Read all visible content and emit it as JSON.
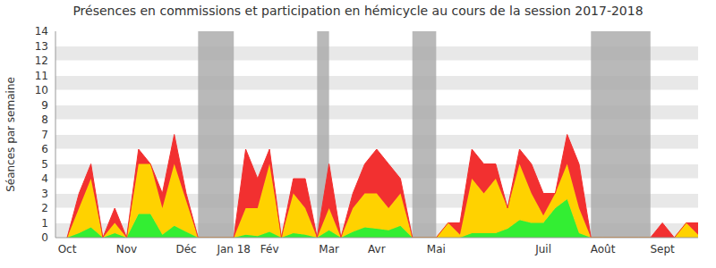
{
  "chart_data": {
    "type": "area",
    "title": "Présences en commissions et participation en hémicycle au cours de la session 2017-2018",
    "y_label": "Séances par semaine",
    "stacked": true,
    "grid": true,
    "categories": [
      "Oct",
      null,
      null,
      null,
      null,
      "Nov",
      null,
      null,
      null,
      null,
      "Déc",
      null,
      null,
      null,
      "Jan 18",
      null,
      null,
      "Fév",
      null,
      null,
      null,
      null,
      "Mar",
      null,
      null,
      null,
      "Avr",
      null,
      null,
      null,
      null,
      "Mai",
      null,
      null,
      null,
      null,
      null,
      null,
      null,
      null,
      "Juil",
      null,
      null,
      null,
      null,
      "Août",
      null,
      null,
      null,
      null,
      "Sept",
      null,
      null,
      null
    ],
    "series": [
      {
        "color": "#33ee33",
        "values": [
          0,
          0.3,
          0.7,
          0,
          0.3,
          0,
          1.6,
          1.6,
          0.2,
          0.8,
          0.4,
          0,
          0,
          0,
          0,
          0.2,
          0.1,
          0.4,
          0,
          0.3,
          0.2,
          0,
          0.5,
          0,
          0.4,
          0.7,
          0.6,
          0.5,
          0.8,
          0,
          0,
          0,
          0,
          0,
          0.3,
          0.3,
          0.3,
          0.6,
          1.2,
          1,
          1,
          2,
          2.6,
          0.3,
          0,
          0,
          0,
          0,
          0,
          0,
          0,
          0,
          0,
          0
        ]
      },
      {
        "color": "#ffd200",
        "values": [
          0,
          1.7,
          3.3,
          0,
          0.7,
          0,
          3.4,
          3.4,
          1.8,
          4.2,
          2.1,
          0,
          0,
          0,
          0,
          1.8,
          1.9,
          4.6,
          0,
          2.7,
          1.8,
          0,
          1.5,
          0,
          1.6,
          2.3,
          2.4,
          1.5,
          2.2,
          0,
          0,
          0,
          1,
          0.2,
          3.7,
          2.7,
          3.7,
          1.4,
          3.8,
          2,
          0.5,
          1,
          2.4,
          1.7,
          0,
          0,
          0,
          0,
          0,
          0,
          0,
          0,
          1,
          0.2
        ]
      },
      {
        "color": "#f23030",
        "values": [
          0,
          1,
          1,
          0,
          1,
          0,
          1,
          0,
          1,
          2,
          0.5,
          0,
          0,
          0,
          0,
          4,
          2,
          1,
          0,
          1,
          2,
          0,
          3,
          0,
          1,
          2,
          3,
          3,
          1,
          0,
          0,
          0,
          0,
          0.8,
          2,
          2,
          1,
          0,
          1,
          2,
          1.5,
          0,
          2,
          3,
          0,
          0,
          0,
          0,
          0,
          0,
          1,
          0,
          0,
          0.8
        ]
      }
    ],
    "bands": [
      [
        11,
        14
      ],
      [
        21,
        22
      ],
      [
        29,
        31
      ],
      [
        44,
        49
      ]
    ],
    "ylim": [
      0,
      14
    ],
    "yticks": [
      0,
      1,
      2,
      3,
      4,
      5,
      6,
      7,
      8,
      9,
      10,
      11,
      12,
      13,
      14
    ]
  }
}
